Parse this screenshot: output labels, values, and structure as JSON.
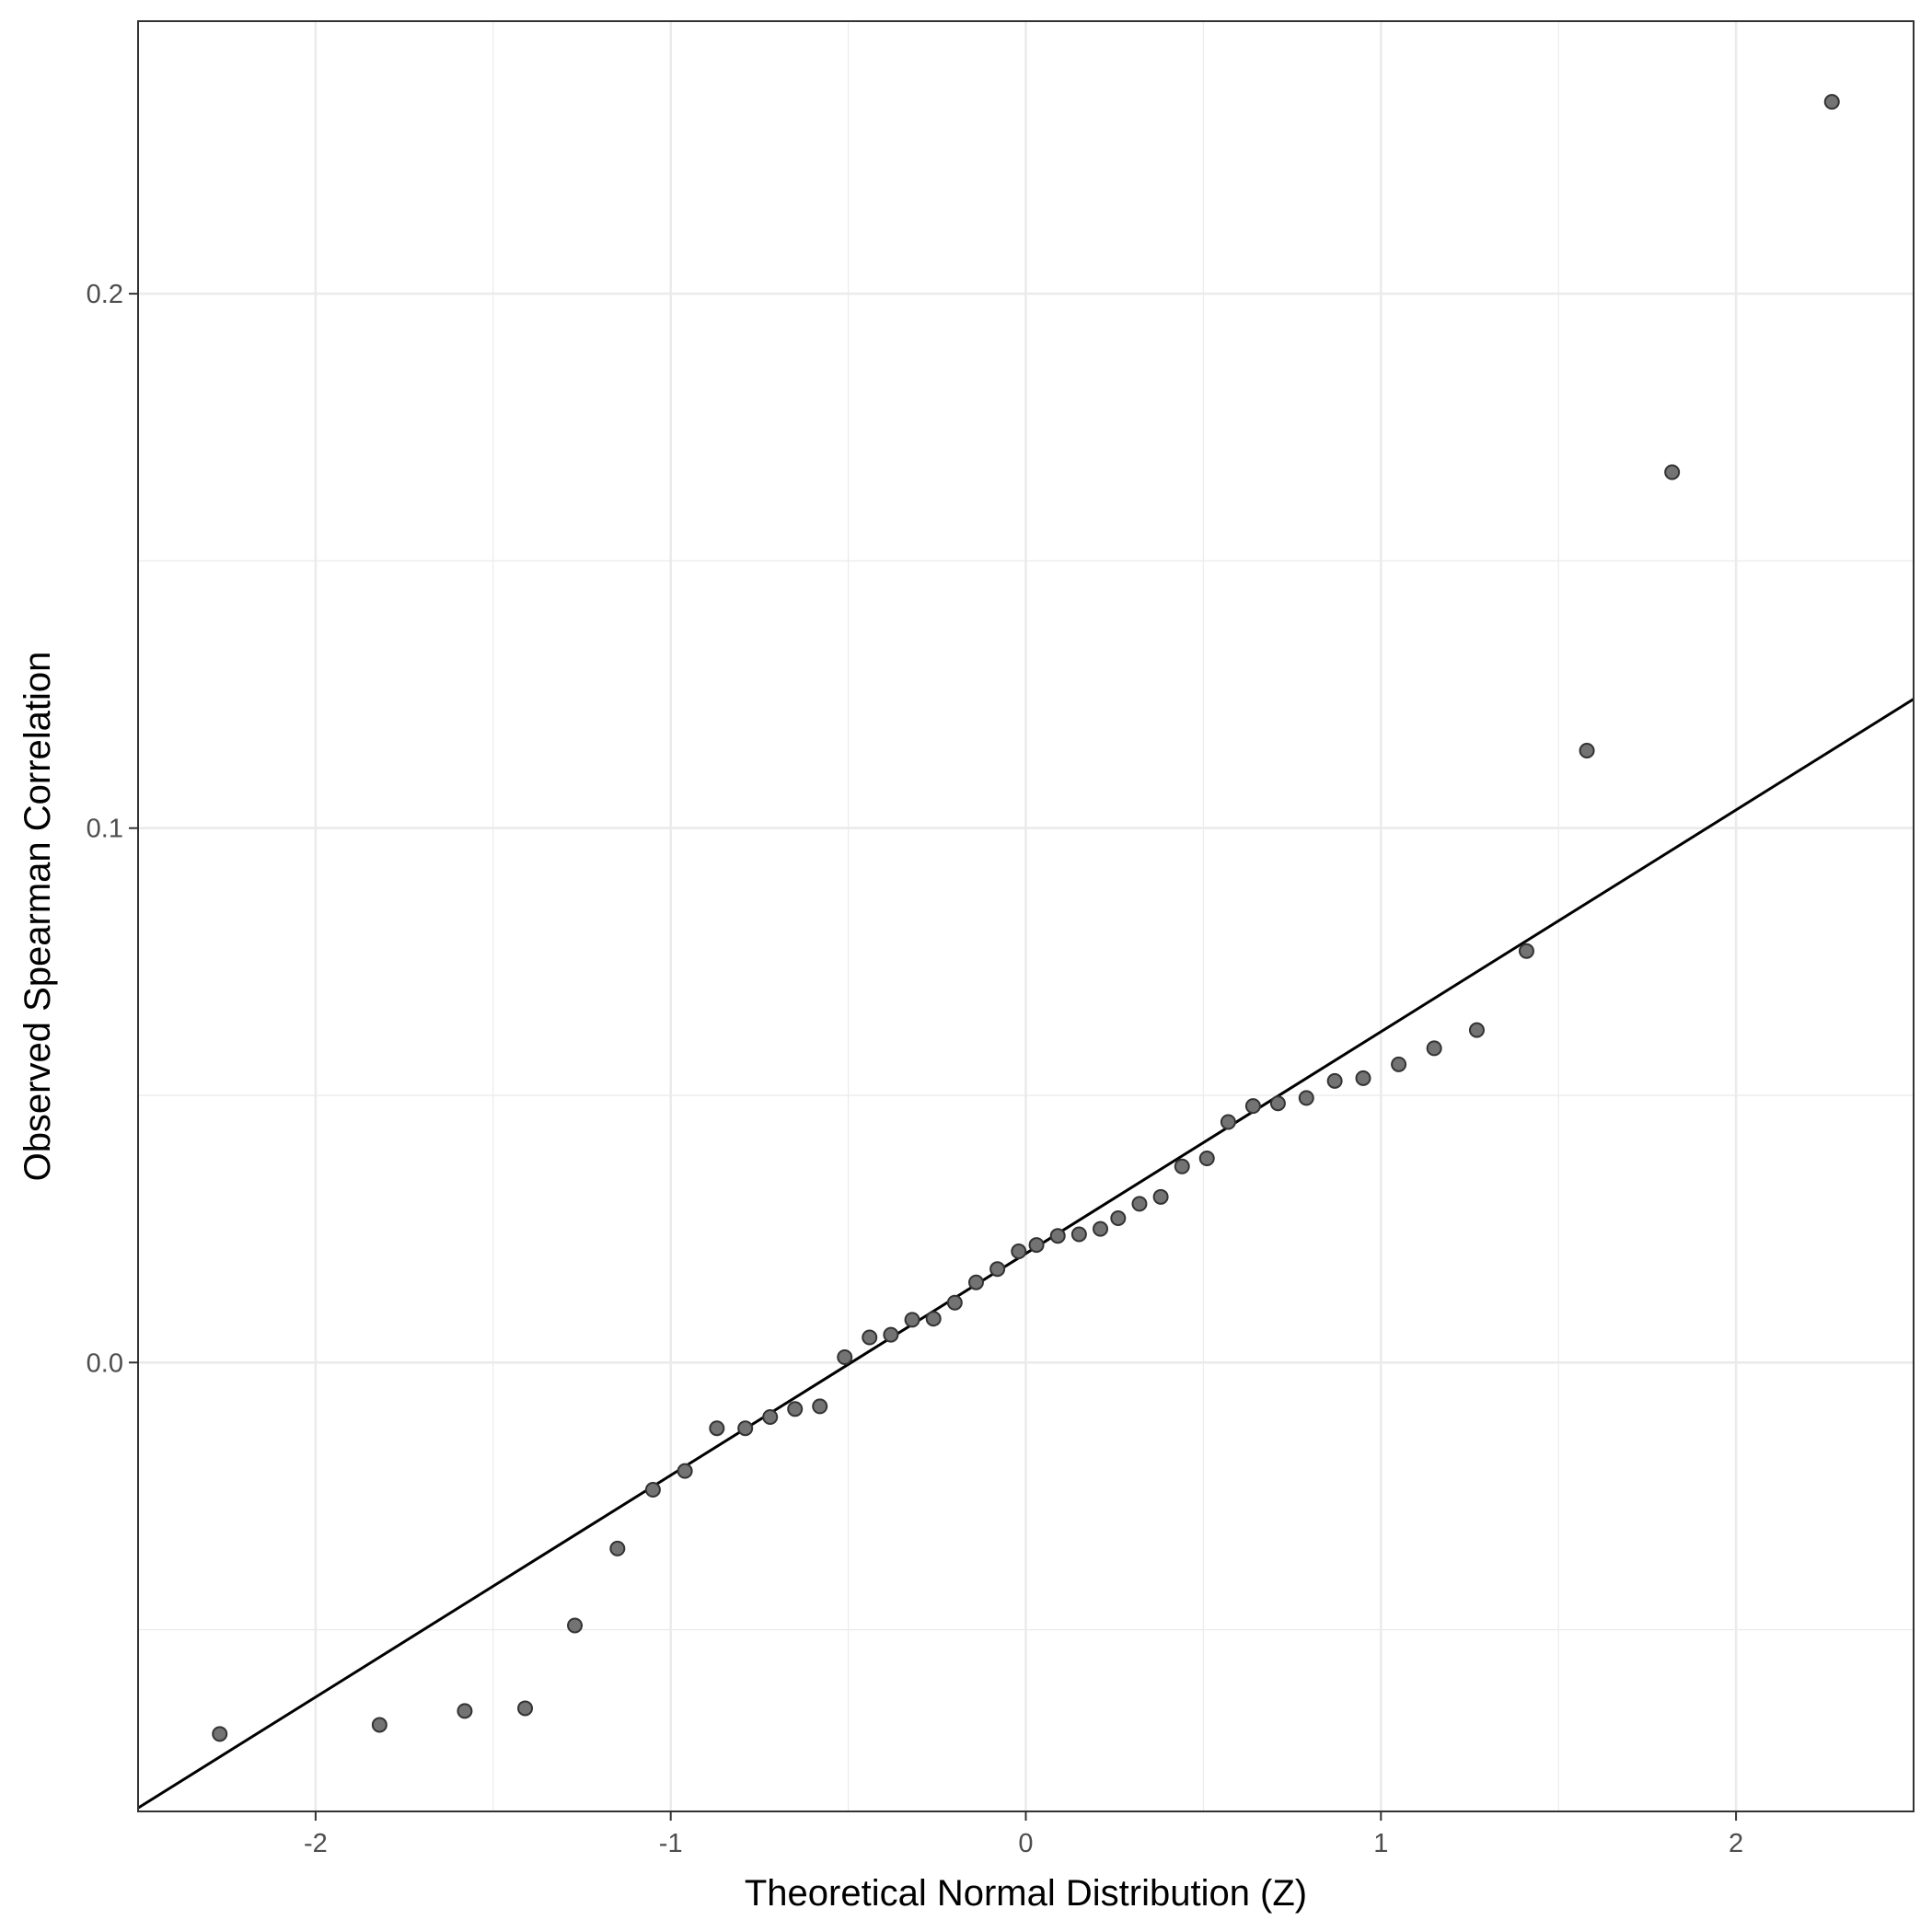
{
  "chart_data": {
    "type": "scatter",
    "title": "",
    "xlabel": "Theoretical Normal Distribution (Z)",
    "ylabel": "Observed Spearman Correlation",
    "xlim": [
      -2.5,
      2.5
    ],
    "ylim": [
      -0.084,
      0.251
    ],
    "x_ticks": [
      -2,
      -1,
      0,
      1,
      2
    ],
    "x_tick_labels": [
      "-2",
      "-1",
      "0",
      "1",
      "2"
    ],
    "x_minor_ticks": [
      -1.5,
      -0.5,
      0.5,
      1.5
    ],
    "y_ticks": [
      0.0,
      0.1,
      0.2
    ],
    "y_tick_labels": [
      "0.0",
      "0.1",
      "0.2"
    ],
    "y_minor_ticks": [
      -0.05,
      0.05,
      0.15
    ],
    "grid": true,
    "legend": "none",
    "colors": {
      "point_fill": "#737373",
      "point_stroke": "#333333",
      "line": "#000000",
      "grid": "#ebebeb",
      "frame": "#333333"
    },
    "reference_line": {
      "intercept": 0.0204,
      "slope": 0.0415
    },
    "points": [
      {
        "x": -2.27,
        "y": -0.0695
      },
      {
        "x": -1.82,
        "y": -0.0678
      },
      {
        "x": -1.58,
        "y": -0.0652
      },
      {
        "x": -1.41,
        "y": -0.0647
      },
      {
        "x": -1.27,
        "y": -0.0492
      },
      {
        "x": -1.15,
        "y": -0.0348
      },
      {
        "x": -1.05,
        "y": -0.0238
      },
      {
        "x": -0.96,
        "y": -0.0203
      },
      {
        "x": -0.87,
        "y": -0.0123
      },
      {
        "x": -0.79,
        "y": -0.0123
      },
      {
        "x": -0.72,
        "y": -0.0102
      },
      {
        "x": -0.65,
        "y": -0.0087
      },
      {
        "x": -0.58,
        "y": -0.0082
      },
      {
        "x": -0.51,
        "y": 0.001
      },
      {
        "x": -0.44,
        "y": 0.0047
      },
      {
        "x": -0.38,
        "y": 0.0052
      },
      {
        "x": -0.32,
        "y": 0.008
      },
      {
        "x": -0.26,
        "y": 0.0082
      },
      {
        "x": -0.2,
        "y": 0.0112
      },
      {
        "x": -0.14,
        "y": 0.015
      },
      {
        "x": -0.08,
        "y": 0.0175
      },
      {
        "x": -0.02,
        "y": 0.0208
      },
      {
        "x": 0.03,
        "y": 0.022
      },
      {
        "x": 0.09,
        "y": 0.0237
      },
      {
        "x": 0.15,
        "y": 0.024
      },
      {
        "x": 0.21,
        "y": 0.025
      },
      {
        "x": 0.26,
        "y": 0.027
      },
      {
        "x": 0.32,
        "y": 0.0297
      },
      {
        "x": 0.38,
        "y": 0.031
      },
      {
        "x": 0.44,
        "y": 0.0367
      },
      {
        "x": 0.51,
        "y": 0.0382
      },
      {
        "x": 0.57,
        "y": 0.045
      },
      {
        "x": 0.64,
        "y": 0.048
      },
      {
        "x": 0.71,
        "y": 0.0485
      },
      {
        "x": 0.79,
        "y": 0.0495
      },
      {
        "x": 0.87,
        "y": 0.0527
      },
      {
        "x": 0.95,
        "y": 0.0532
      },
      {
        "x": 1.05,
        "y": 0.0558
      },
      {
        "x": 1.15,
        "y": 0.0588
      },
      {
        "x": 1.27,
        "y": 0.0622
      },
      {
        "x": 1.41,
        "y": 0.077
      },
      {
        "x": 1.58,
        "y": 0.1145
      },
      {
        "x": 1.82,
        "y": 0.1666
      },
      {
        "x": 2.27,
        "y": 0.2359
      }
    ]
  }
}
